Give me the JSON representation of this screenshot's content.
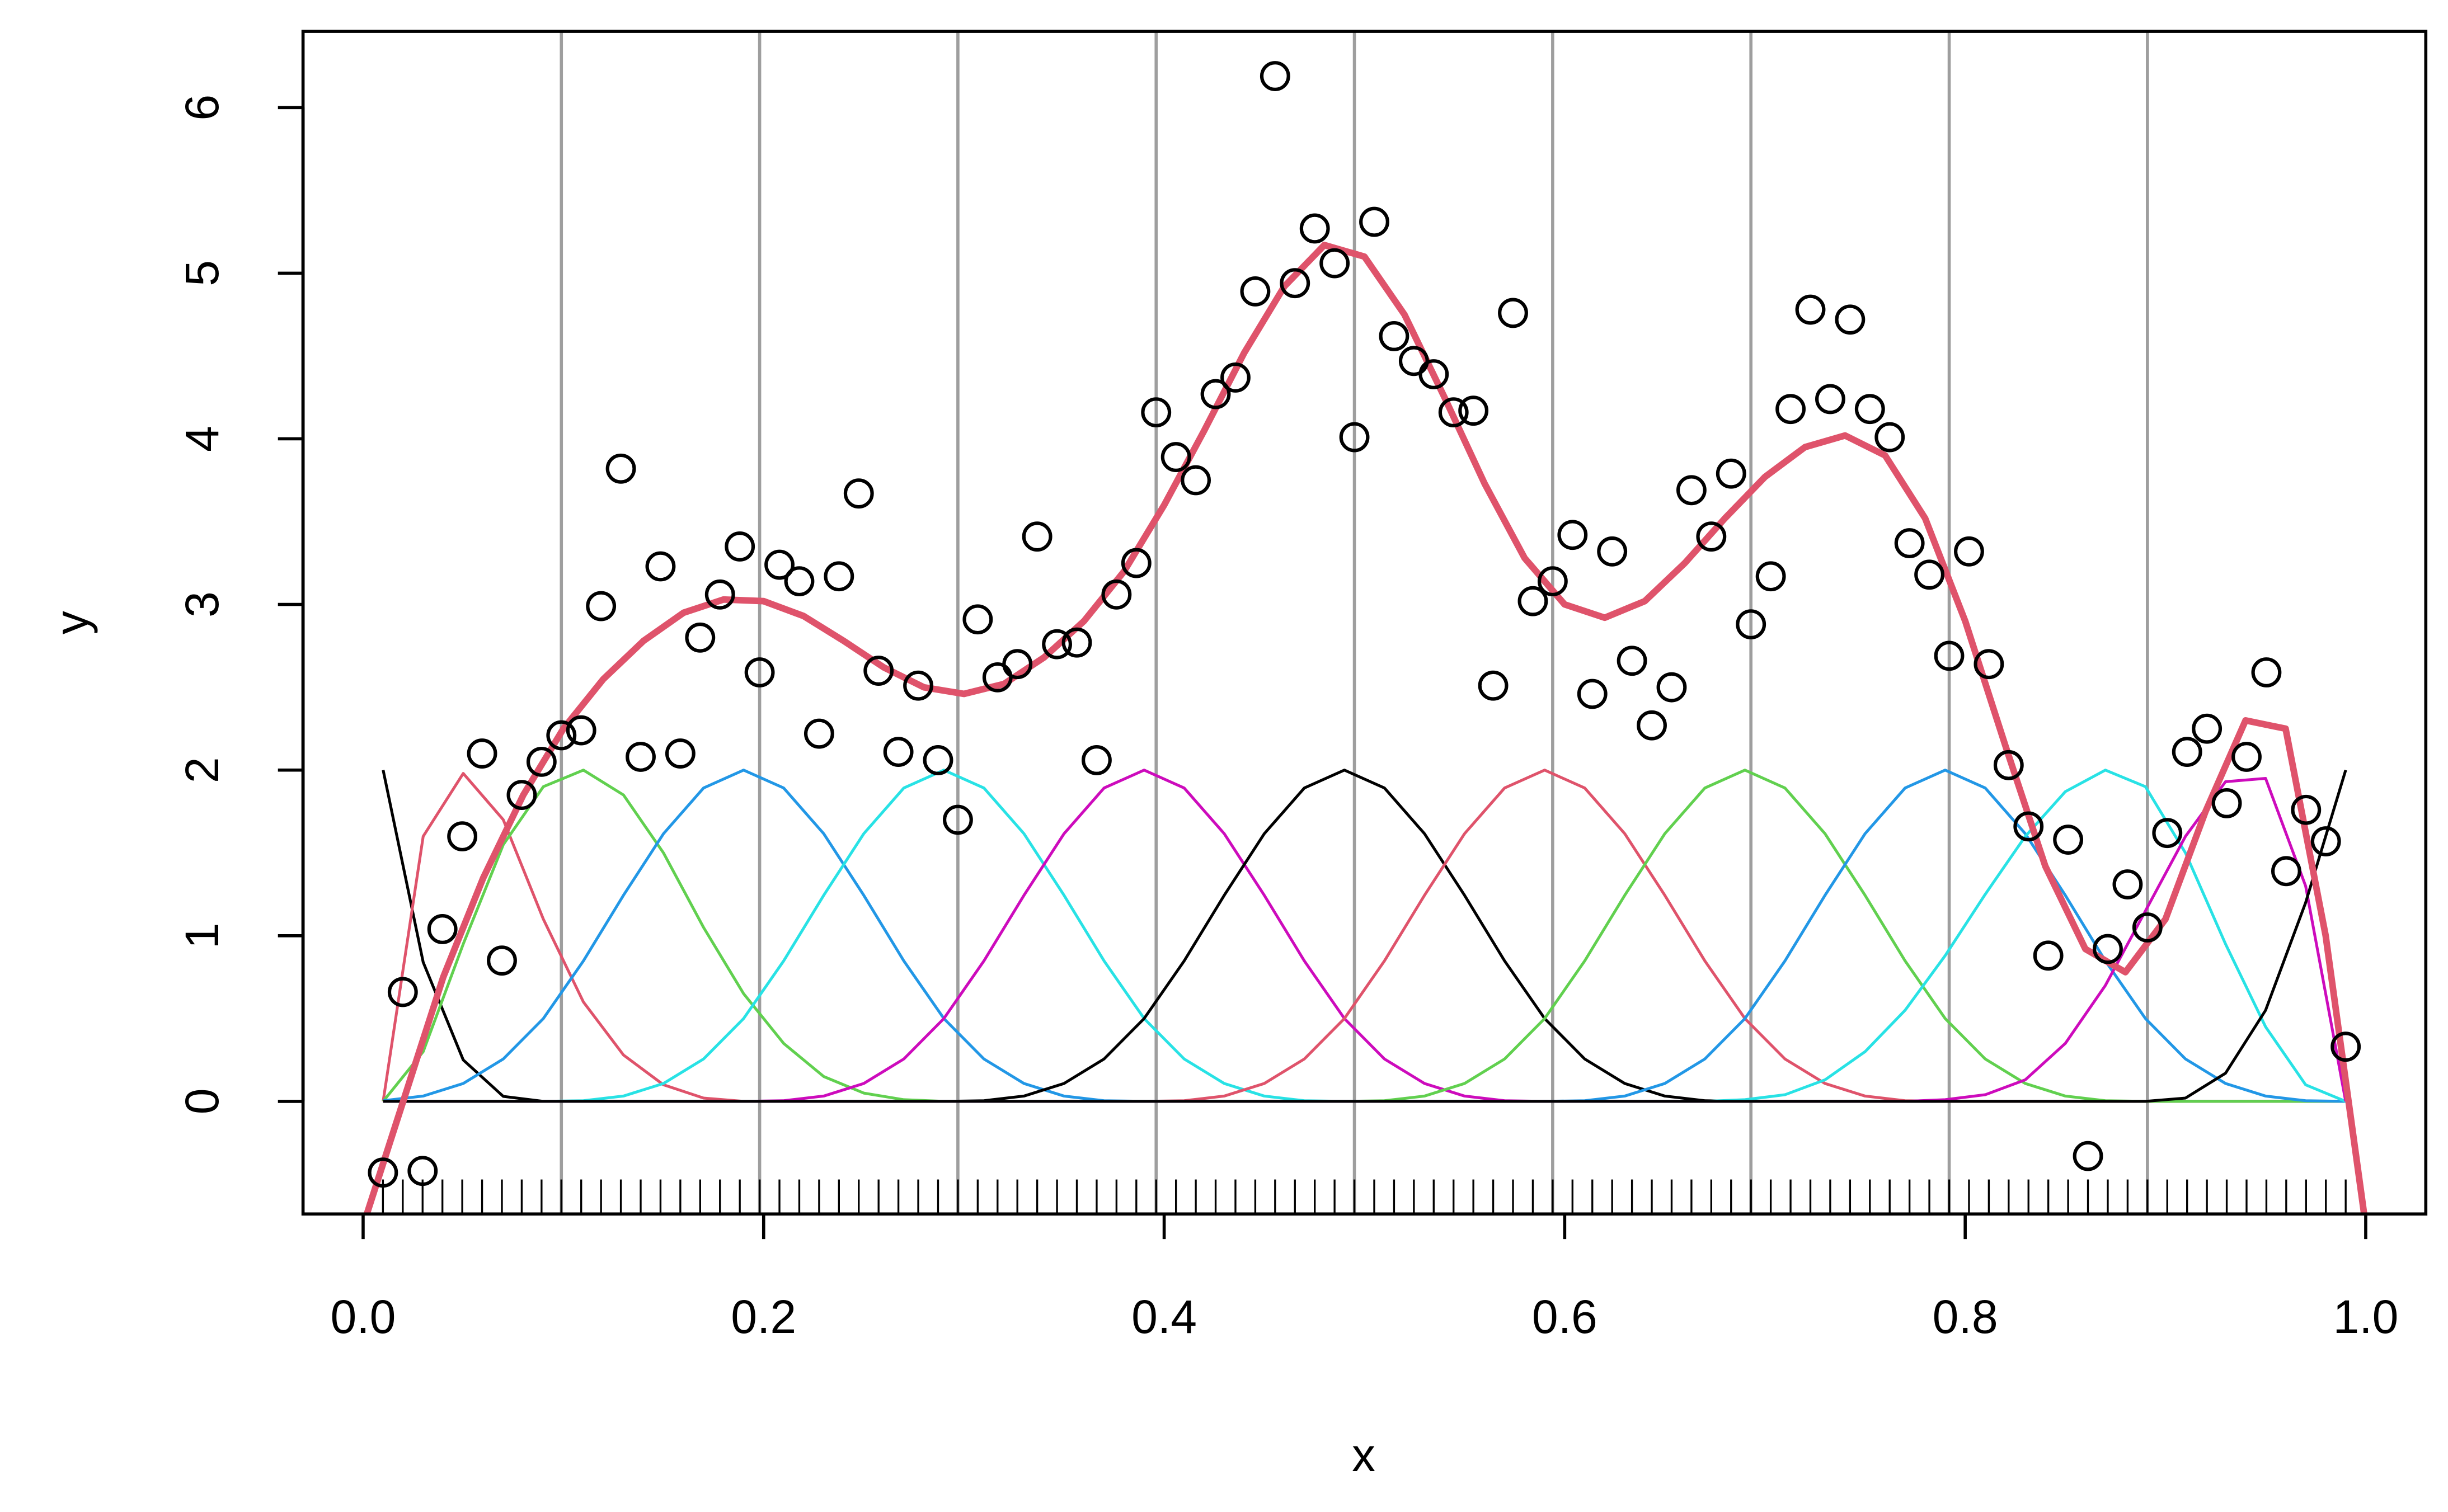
{
  "chart_data": {
    "type": "scatter",
    "xlabel": "x",
    "ylabel": "y",
    "xlim": [
      -0.03,
      1.03
    ],
    "ylim": [
      -0.68,
      6.46
    ],
    "xticks": [
      {
        "value": 0,
        "label": "0.0"
      },
      0.2,
      0.4,
      0.6,
      0.8,
      {
        "value": 1,
        "label": "1.0"
      }
    ],
    "yticks": [
      0,
      1,
      2,
      3,
      4,
      5,
      6
    ],
    "rug": true,
    "point_color": "#000000",
    "x": [
      0.0099,
      0.0198,
      0.0297,
      0.0396,
      0.0495,
      0.0594,
      0.0693,
      0.0792,
      0.0891,
      0.099,
      0.1089,
      0.1188,
      0.1287,
      0.1386,
      0.1485,
      0.1584,
      0.1683,
      0.1782,
      0.1881,
      0.198,
      0.2079,
      0.2178,
      0.2277,
      0.2376,
      0.2475,
      0.2574,
      0.2673,
      0.2772,
      0.2871,
      0.297,
      0.3069,
      0.3168,
      0.3267,
      0.3366,
      0.3465,
      0.3564,
      0.3663,
      0.3762,
      0.3861,
      0.396,
      0.4059,
      0.4158,
      0.4257,
      0.4356,
      0.4455,
      0.4554,
      0.4653,
      0.4752,
      0.4851,
      0.495,
      0.5049,
      0.5148,
      0.5247,
      0.5346,
      0.5445,
      0.5544,
      0.5643,
      0.5742,
      0.5841,
      0.594,
      0.6039,
      0.6138,
      0.6237,
      0.6336,
      0.6435,
      0.6534,
      0.6633,
      0.6732,
      0.6831,
      0.693,
      0.7029,
      0.7128,
      0.7227,
      0.7326,
      0.7425,
      0.7524,
      0.7623,
      0.7722,
      0.7821,
      0.792,
      0.8019,
      0.8118,
      0.8217,
      0.8316,
      0.8415,
      0.8514,
      0.8613,
      0.8712,
      0.8811,
      0.891,
      0.9009,
      0.9108,
      0.9207,
      0.9306,
      0.9405,
      0.9504,
      0.9603,
      0.9702,
      0.9801,
      0.99
    ],
    "values": [
      -0.43,
      0.66,
      -0.42,
      1.04,
      1.6,
      2.1,
      0.85,
      1.85,
      2.05,
      2.21,
      2.24,
      2.99,
      3.82,
      2.08,
      3.23,
      2.1,
      2.8,
      3.06,
      3.35,
      2.59,
      3.24,
      3.14,
      2.22,
      3.17,
      3.67,
      2.6,
      2.11,
      2.51,
      2.06,
      1.7,
      2.91,
      2.56,
      2.64,
      3.41,
      2.76,
      2.77,
      2.06,
      3.06,
      3.25,
      4.16,
      3.89,
      3.75,
      4.27,
      4.37,
      4.89,
      6.19,
      4.94,
      5.27,
      5.06,
      4.01,
      5.31,
      4.62,
      4.47,
      4.39,
      4.16,
      4.17,
      2.51,
      4.76,
      3.02,
      3.14,
      3.42,
      2.46,
      3.32,
      2.66,
      2.27,
      2.5,
      3.69,
      3.41,
      3.79,
      2.88,
      3.17,
      4.18,
      4.78,
      4.24,
      4.72,
      4.18,
      4.01,
      3.37,
      3.18,
      2.69,
      3.32,
      2.64,
      2.03,
      1.66,
      0.88,
      1.58,
      -0.33,
      0.92,
      1.31,
      1.05,
      1.62,
      2.11,
      2.25,
      1.8,
      2.08,
      2.59,
      1.39,
      1.76,
      1.57,
      0.33
    ],
    "knots": [
      0.099,
      0.198,
      0.297,
      0.396,
      0.495,
      0.594,
      0.693,
      0.792,
      0.891
    ],
    "knot_color": "#9e9e9e",
    "basis": {
      "x": [
        0.01,
        0.03,
        0.05,
        0.07,
        0.09,
        0.11,
        0.13,
        0.15,
        0.17,
        0.19,
        0.21,
        0.23,
        0.25,
        0.27,
        0.29,
        0.31,
        0.33,
        0.35,
        0.37,
        0.39,
        0.41,
        0.43,
        0.45,
        0.47,
        0.49,
        0.51,
        0.53,
        0.55,
        0.57,
        0.59,
        0.61,
        0.63,
        0.65,
        0.67,
        0.69,
        0.71,
        0.73,
        0.75,
        0.77,
        0.79,
        0.81,
        0.83,
        0.85,
        0.87,
        0.89,
        0.91,
        0.93,
        0.95,
        0.97,
        0.99
      ],
      "series": [
        {
          "color": "#000000",
          "values": [
            2,
            0.84,
            0.25,
            0.03,
            0,
            0,
            0,
            0,
            0,
            0,
            0,
            0,
            0,
            0,
            0,
            0,
            0,
            0,
            0,
            0,
            0,
            0,
            0,
            0,
            0,
            0,
            0,
            0,
            0,
            0,
            0,
            0,
            0,
            0,
            0,
            0,
            0,
            0,
            0,
            0,
            0,
            0,
            0,
            0,
            0,
            0,
            0,
            0,
            0,
            0
          ]
        },
        {
          "color": "#DF536B",
          "values": [
            0,
            1.6,
            1.98,
            1.7,
            1.1,
            0.6,
            0.28,
            0.1,
            0.02,
            0,
            0,
            0,
            0,
            0,
            0,
            0,
            0,
            0,
            0,
            0,
            0,
            0,
            0,
            0,
            0,
            0,
            0,
            0,
            0,
            0,
            0,
            0,
            0,
            0,
            0,
            0,
            0,
            0,
            0,
            0,
            0,
            0,
            0,
            0,
            0,
            0,
            0,
            0,
            0,
            0
          ]
        },
        {
          "color": "#61D04F",
          "values": [
            0,
            0.3,
            0.95,
            1.55,
            1.9,
            2,
            1.85,
            1.5,
            1.05,
            0.65,
            0.35,
            0.15,
            0.05,
            0.01,
            0,
            0,
            0,
            0,
            0,
            0,
            0,
            0,
            0,
            0,
            0,
            0,
            0,
            0,
            0,
            0,
            0,
            0,
            0,
            0,
            0,
            0,
            0,
            0,
            0,
            0,
            0,
            0,
            0,
            0,
            0,
            0,
            0,
            0,
            0,
            0
          ]
        },
        {
          "color": "#2297E6",
          "values": [
            0.004,
            0.032,
            0.108,
            0.256,
            0.5,
            0.848,
            1.244,
            1.616,
            1.892,
            2,
            1.892,
            1.616,
            1.244,
            0.848,
            0.5,
            0.256,
            0.108,
            0.032,
            0.004,
            0,
            0,
            0,
            0,
            0,
            0,
            0,
            0,
            0,
            0,
            0,
            0,
            0,
            0,
            0,
            0,
            0,
            0,
            0,
            0,
            0,
            0,
            0,
            0,
            0,
            0,
            0,
            0,
            0,
            0,
            0
          ]
        },
        {
          "color": "#28E2E5",
          "values": [
            0,
            0,
            0,
            0,
            0,
            0.004,
            0.032,
            0.108,
            0.256,
            0.5,
            0.848,
            1.244,
            1.616,
            1.892,
            2,
            1.892,
            1.616,
            1.244,
            0.848,
            0.5,
            0.256,
            0.108,
            0.032,
            0.004,
            0,
            0,
            0,
            0,
            0,
            0,
            0,
            0,
            0,
            0,
            0,
            0,
            0,
            0,
            0,
            0,
            0,
            0,
            0,
            0,
            0,
            0,
            0,
            0,
            0,
            0
          ]
        },
        {
          "color": "#CD0BBC",
          "values": [
            0,
            0,
            0,
            0,
            0,
            0,
            0,
            0,
            0,
            0,
            0.004,
            0.032,
            0.108,
            0.256,
            0.5,
            0.848,
            1.244,
            1.616,
            1.892,
            2,
            1.892,
            1.616,
            1.244,
            0.848,
            0.5,
            0.256,
            0.108,
            0.032,
            0.004,
            0,
            0,
            0,
            0,
            0,
            0,
            0,
            0,
            0,
            0,
            0,
            0,
            0,
            0,
            0,
            0,
            0,
            0,
            0,
            0,
            0
          ]
        },
        {
          "color": "#000000",
          "values": [
            0,
            0,
            0,
            0,
            0,
            0,
            0,
            0,
            0,
            0,
            0,
            0,
            0,
            0,
            0,
            0.004,
            0.032,
            0.108,
            0.256,
            0.5,
            0.848,
            1.244,
            1.616,
            1.892,
            2,
            1.892,
            1.616,
            1.244,
            0.848,
            0.5,
            0.256,
            0.108,
            0.032,
            0.004,
            0,
            0,
            0,
            0,
            0,
            0,
            0,
            0,
            0,
            0,
            0,
            0,
            0,
            0,
            0,
            0
          ]
        },
        {
          "color": "#DF536B",
          "values": [
            0,
            0,
            0,
            0,
            0,
            0,
            0,
            0,
            0,
            0,
            0,
            0,
            0,
            0,
            0,
            0,
            0,
            0,
            0,
            0,
            0.004,
            0.032,
            0.108,
            0.256,
            0.5,
            0.848,
            1.244,
            1.616,
            1.892,
            2,
            1.892,
            1.616,
            1.244,
            0.848,
            0.5,
            0.256,
            0.108,
            0.032,
            0.004,
            0,
            0,
            0,
            0,
            0,
            0,
            0,
            0,
            0,
            0,
            0
          ]
        },
        {
          "color": "#61D04F",
          "values": [
            0,
            0,
            0,
            0,
            0,
            0,
            0,
            0,
            0,
            0,
            0,
            0,
            0,
            0,
            0,
            0,
            0,
            0,
            0,
            0,
            0,
            0,
            0,
            0,
            0,
            0.004,
            0.032,
            0.108,
            0.256,
            0.5,
            0.848,
            1.244,
            1.616,
            1.892,
            2,
            1.892,
            1.616,
            1.244,
            0.848,
            0.5,
            0.256,
            0.108,
            0.032,
            0.004,
            0,
            0,
            0,
            0,
            0,
            0
          ]
        },
        {
          "color": "#2297E6",
          "values": [
            0,
            0,
            0,
            0,
            0,
            0,
            0,
            0,
            0,
            0,
            0,
            0,
            0,
            0,
            0,
            0,
            0,
            0,
            0,
            0,
            0,
            0,
            0,
            0,
            0,
            0,
            0,
            0,
            0,
            0,
            0.004,
            0.032,
            0.108,
            0.256,
            0.5,
            0.848,
            1.244,
            1.616,
            1.892,
            2,
            1.892,
            1.616,
            1.244,
            0.848,
            0.5,
            0.256,
            0.108,
            0.032,
            0.004,
            0
          ]
        },
        {
          "color": "#28E2E5",
          "values": [
            0,
            0,
            0,
            0,
            0,
            0,
            0,
            0,
            0,
            0,
            0,
            0,
            0,
            0,
            0,
            0,
            0,
            0,
            0,
            0,
            0,
            0,
            0,
            0,
            0,
            0,
            0,
            0,
            0,
            0,
            0,
            0,
            0,
            0,
            0.01,
            0.04,
            0.13,
            0.3,
            0.55,
            0.88,
            1.25,
            1.6,
            1.87,
            2,
            1.9,
            1.5,
            0.95,
            0.45,
            0.1,
            0
          ]
        },
        {
          "color": "#CD0BBC",
          "values": [
            0,
            0,
            0,
            0,
            0,
            0,
            0,
            0,
            0,
            0,
            0,
            0,
            0,
            0,
            0,
            0,
            0,
            0,
            0,
            0,
            0,
            0,
            0,
            0,
            0,
            0,
            0,
            0,
            0,
            0,
            0,
            0,
            0,
            0,
            0,
            0,
            0,
            0,
            0,
            0.01,
            0.04,
            0.13,
            0.35,
            0.7,
            1.15,
            1.6,
            1.93,
            1.95,
            1.3,
            0
          ]
        },
        {
          "color": "#000000",
          "values": [
            0,
            0,
            0,
            0,
            0,
            0,
            0,
            0,
            0,
            0,
            0,
            0,
            0,
            0,
            0,
            0,
            0,
            0,
            0,
            0,
            0,
            0,
            0,
            0,
            0,
            0,
            0,
            0,
            0,
            0,
            0,
            0,
            0,
            0,
            0,
            0,
            0,
            0,
            0,
            0,
            0,
            0,
            0,
            0,
            0,
            0.02,
            0.17,
            0.55,
            1.2,
            2
          ]
        }
      ]
    },
    "fit": {
      "color": "#DF536B",
      "x": [
        0,
        0.02,
        0.04,
        0.06,
        0.08,
        0.1,
        0.12,
        0.14,
        0.16,
        0.18,
        0.2,
        0.22,
        0.24,
        0.26,
        0.28,
        0.3,
        0.32,
        0.34,
        0.36,
        0.38,
        0.4,
        0.42,
        0.44,
        0.46,
        0.48,
        0.5,
        0.52,
        0.54,
        0.56,
        0.58,
        0.6,
        0.62,
        0.64,
        0.66,
        0.68,
        0.7,
        0.72,
        0.74,
        0.76,
        0.78,
        0.8,
        0.82,
        0.84,
        0.86,
        0.88,
        0.9,
        0.92,
        0.94,
        0.96,
        0.98,
        1
      ],
      "values": [
        -0.75,
        0,
        0.75,
        1.35,
        1.85,
        2.25,
        2.55,
        2.78,
        2.95,
        3.03,
        3.02,
        2.93,
        2.78,
        2.62,
        2.5,
        2.46,
        2.52,
        2.68,
        2.9,
        3.2,
        3.6,
        4.05,
        4.52,
        4.92,
        5.17,
        5.1,
        4.75,
        4.25,
        3.73,
        3.28,
        3,
        2.92,
        3.02,
        3.25,
        3.52,
        3.77,
        3.95,
        4.02,
        3.9,
        3.52,
        2.9,
        2.15,
        1.42,
        0.92,
        0.78,
        1.1,
        1.75,
        2.3,
        2.25,
        1,
        -0.75
      ]
    }
  }
}
